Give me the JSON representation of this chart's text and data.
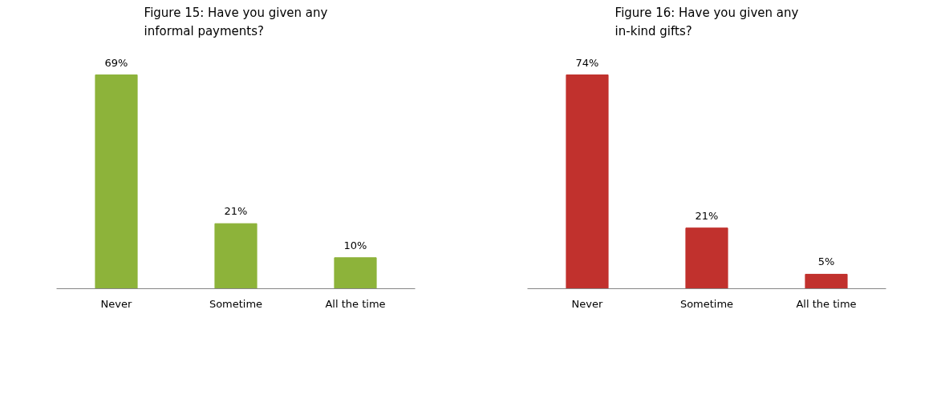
{
  "chart_data": [
    {
      "type": "bar",
      "title": "Figure 15: Have you given any informal payments?",
      "categories": [
        "Never",
        "Sometime",
        "All the time"
      ],
      "values": [
        69,
        21,
        10
      ],
      "value_labels": [
        "69%",
        "21%",
        "10%"
      ],
      "color": "#8db33a"
    },
    {
      "type": "bar",
      "title": "Figure 16: Have you given any in-kind gifts?",
      "categories": [
        "Never",
        "Sometime",
        "All the time"
      ],
      "values": [
        74,
        21,
        5
      ],
      "value_labels": [
        "74%",
        "21%",
        "5%"
      ],
      "color": "#c1312d"
    }
  ]
}
